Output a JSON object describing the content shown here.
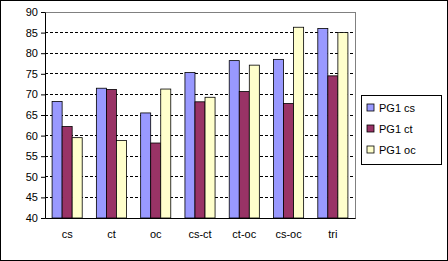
{
  "chart_data": {
    "type": "bar",
    "categories": [
      "cs",
      "ct",
      "oc",
      "cs-ct",
      "ct-oc",
      "cs-oc",
      "tri"
    ],
    "series": [
      {
        "name": "PG1 cs",
        "color": "#9999ff",
        "values": [
          68.3,
          71.5,
          65.5,
          75.3,
          78.2,
          78.5,
          86.0
        ]
      },
      {
        "name": "PG1 ct",
        "color": "#993366",
        "values": [
          62.2,
          71.2,
          58.2,
          68.2,
          70.7,
          67.8,
          74.5
        ]
      },
      {
        "name": "PG1 oc",
        "color": "#ffffcc",
        "values": [
          59.5,
          58.8,
          71.3,
          69.3,
          77.1,
          86.3,
          85.0
        ]
      }
    ],
    "ylim": [
      40,
      90
    ],
    "yticks": [
      40,
      45,
      50,
      55,
      60,
      65,
      70,
      75,
      80,
      85,
      90
    ],
    "grid": true,
    "legend": "right"
  }
}
